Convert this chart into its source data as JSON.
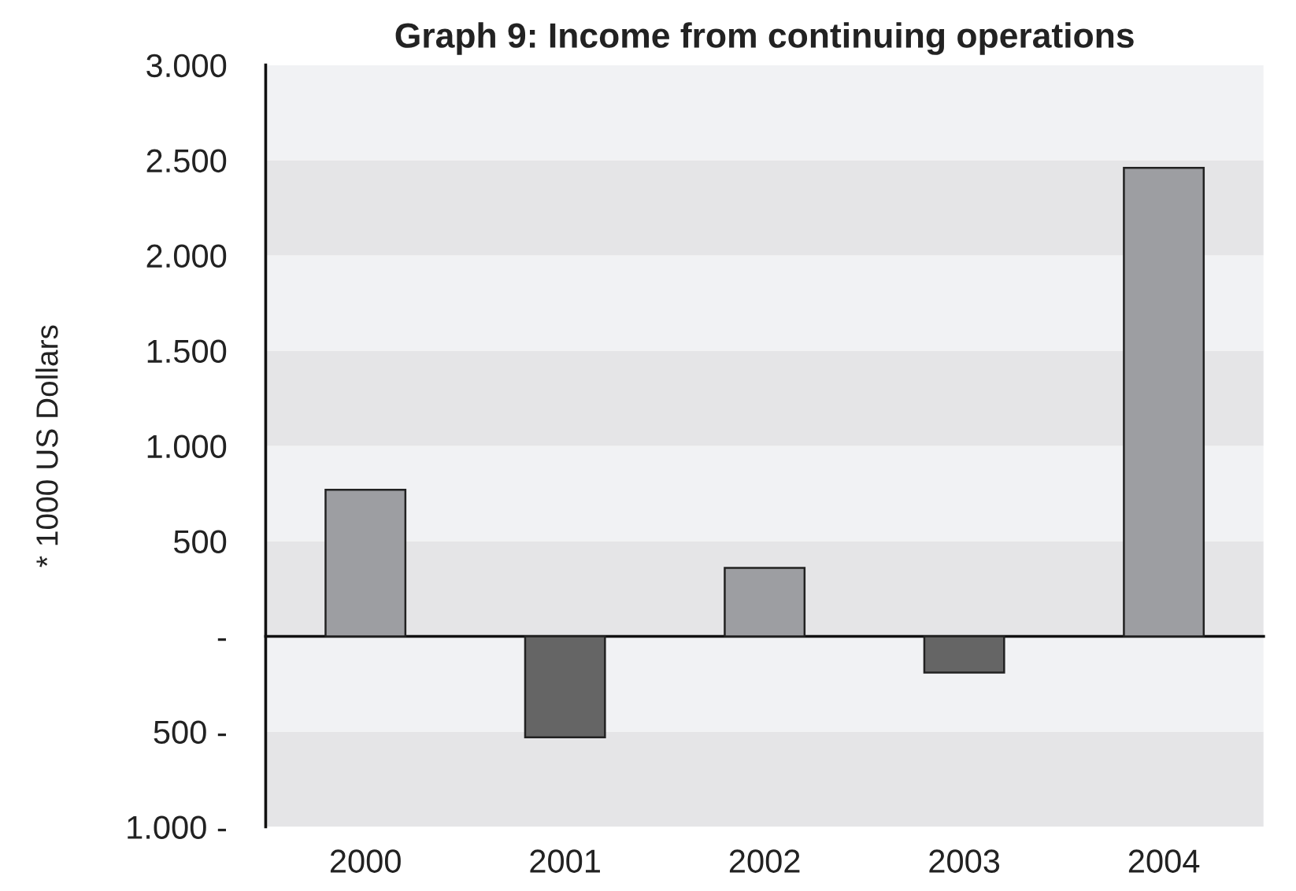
{
  "chart_data": {
    "type": "bar",
    "title": "Graph 9: Income from continuing operations",
    "ylabel": "* 1000 US Dollars",
    "categories": [
      "2000",
      "2001",
      "2002",
      "2003",
      "2004"
    ],
    "values": [
      770,
      -530,
      360,
      -190,
      2460
    ],
    "colors": [
      "#9d9ea2",
      "#656565",
      "#9d9ea2",
      "#656565",
      "#9d9ea2"
    ],
    "ylim": [
      -1000,
      3000
    ],
    "yticks": [
      {
        "value": -1000,
        "label": "1.000 -"
      },
      {
        "value": -500,
        "label": "500 -"
      },
      {
        "value": 0,
        "label": "-"
      },
      500,
      {
        "value": 1000,
        "label": "1.000"
      },
      {
        "value": 1500,
        "label": "1.500"
      },
      {
        "value": 2000,
        "label": "2.000"
      },
      {
        "value": 2500,
        "label": "2.500"
      },
      {
        "value": 3000,
        "label": "3.000"
      }
    ],
    "grid": true,
    "legend": false
  }
}
